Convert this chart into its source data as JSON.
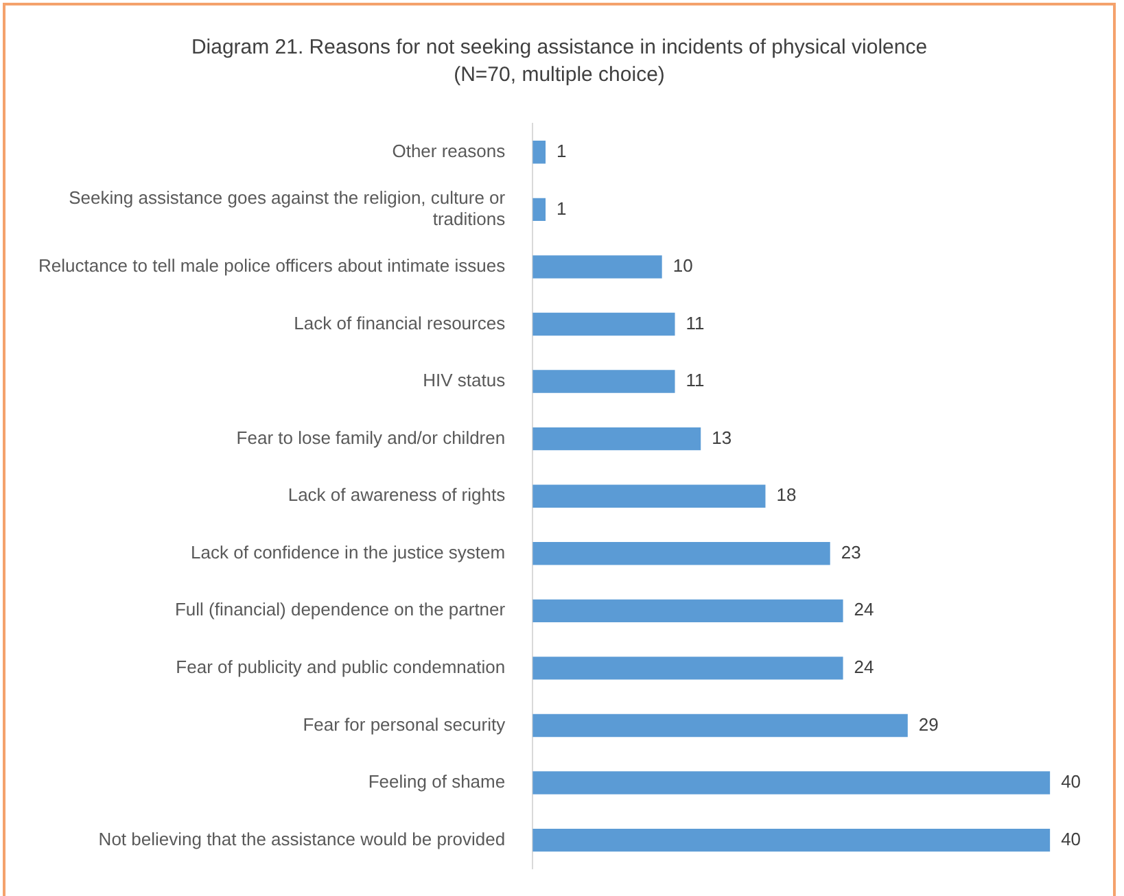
{
  "chart_data": {
    "type": "bar",
    "orientation": "horizontal",
    "title": "Diagram 21. Reasons for not seeking assistance in incidents of physical violence",
    "subtitle": "(N=70, multiple choice)",
    "categories": [
      "Other reasons",
      "Seeking assistance goes against the religion, culture or traditions",
      "Reluctance to tell male police officers about intimate issues",
      "Lack of financial resources",
      "HIV status",
      "Fear to lose family and/or children",
      "Lack of awareness of rights",
      "Lack of confidence in the justice system",
      "Full (financial) dependence on the partner",
      "Fear of publicity and public condemnation",
      "Fear for personal security",
      "Feeling of shame",
      "Not believing that the assistance would be provided"
    ],
    "values": [
      1,
      1,
      10,
      11,
      11,
      13,
      18,
      23,
      24,
      24,
      29,
      40,
      40
    ],
    "color": "#5b9bd5",
    "data_labels": true,
    "legend": false
  }
}
